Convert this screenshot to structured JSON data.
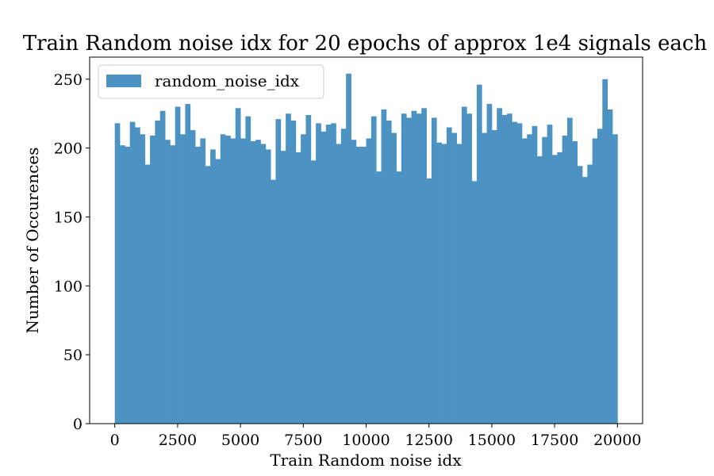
{
  "chart_data": {
    "type": "bar",
    "title": "Train Random noise idx for 20 epochs of approx 1e4 signals each",
    "xlabel": "Train Random noise idx",
    "ylabel": "Number of Occurences",
    "xlim": [
      -1000,
      21000
    ],
    "ylim": [
      0,
      266
    ],
    "xticks": [
      0,
      2500,
      5000,
      7500,
      10000,
      12500,
      15000,
      17500,
      20000
    ],
    "xtick_labels": [
      "0",
      "2500",
      "5000",
      "7500",
      "10000",
      "12500",
      "15000",
      "17500",
      "20000"
    ],
    "yticks": [
      0,
      50,
      100,
      150,
      200,
      250
    ],
    "ytick_labels": [
      "0",
      "50",
      "100",
      "150",
      "200",
      "250"
    ],
    "bins": {
      "start": 0,
      "end": 20000,
      "count": 100
    },
    "series": [
      {
        "name": "random_noise_idx",
        "color": "#4c93c4",
        "values": [
          218,
          202,
          201,
          219,
          215,
          210,
          188,
          209,
          220,
          227,
          206,
          202,
          230,
          210,
          232,
          213,
          201,
          207,
          187,
          199,
          192,
          210,
          209,
          207,
          229,
          207,
          223,
          205,
          206,
          203,
          199,
          177,
          221,
          198,
          225,
          220,
          197,
          210,
          224,
          191,
          218,
          212,
          217,
          218,
          203,
          214,
          254,
          206,
          201,
          201,
          207,
          223,
          183,
          228,
          220,
          211,
          183,
          225,
          222,
          227,
          225,
          229,
          178,
          222,
          204,
          203,
          215,
          211,
          203,
          230,
          225,
          176,
          246,
          211,
          232,
          213,
          229,
          224,
          225,
          219,
          218,
          207,
          210,
          216,
          194,
          208,
          217,
          195,
          197,
          209,
          222,
          205,
          187,
          179,
          188,
          207,
          214,
          250,
          228,
          210
        ]
      }
    ],
    "legend": {
      "position": "top-left",
      "entries": [
        "random_noise_idx"
      ]
    },
    "grid": false
  }
}
